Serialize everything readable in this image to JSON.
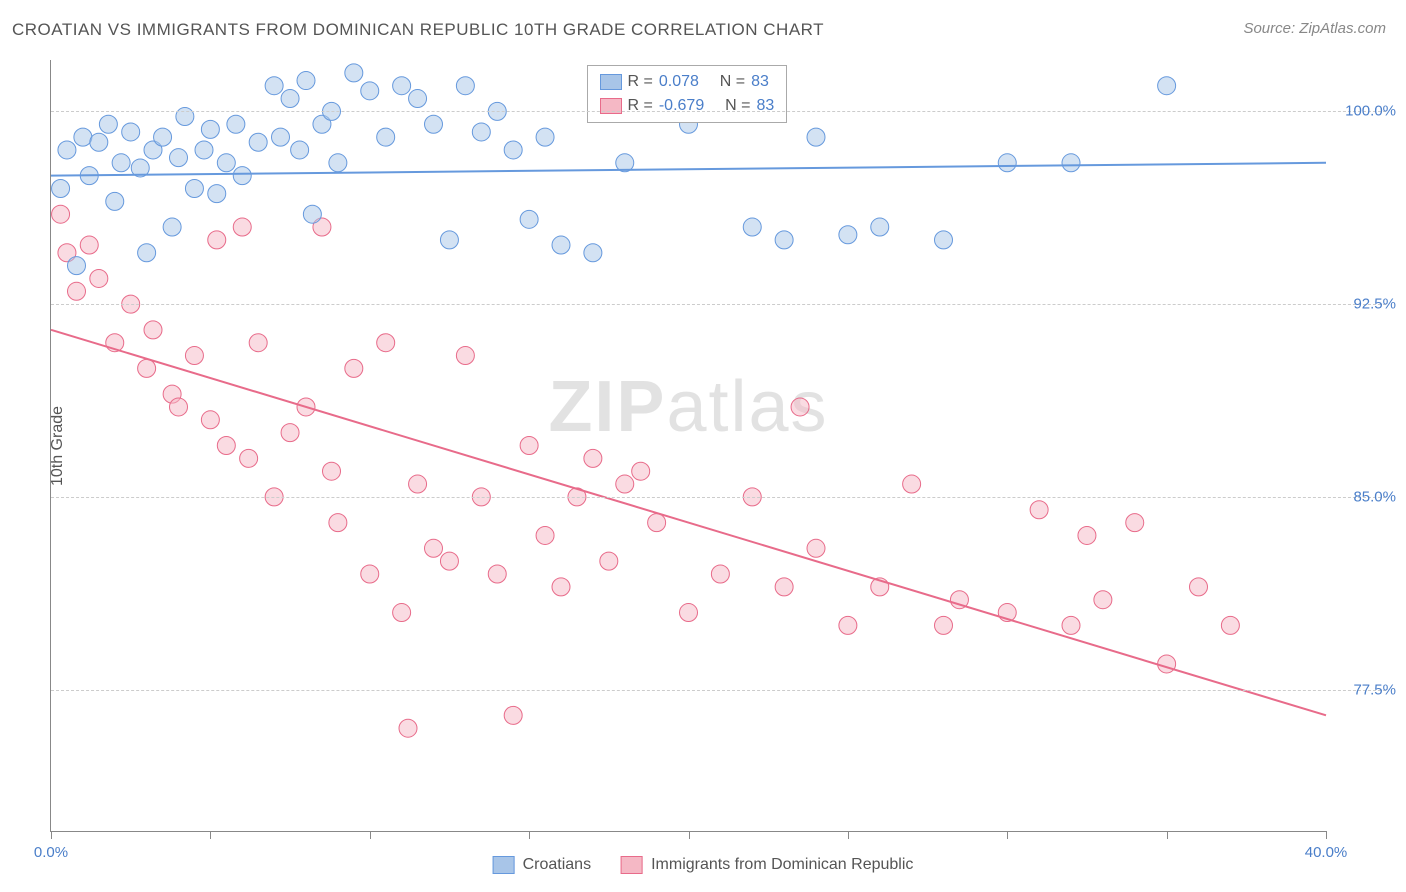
{
  "title": "CROATIAN VS IMMIGRANTS FROM DOMINICAN REPUBLIC 10TH GRADE CORRELATION CHART",
  "source": "Source: ZipAtlas.com",
  "ylabel": "10th Grade",
  "watermark": "ZIPatlas",
  "chart": {
    "type": "scatter",
    "xlim": [
      0,
      40
    ],
    "ylim": [
      72,
      102
    ],
    "yticks": [
      77.5,
      85.0,
      92.5,
      100.0
    ],
    "ytick_labels": [
      "77.5%",
      "85.0%",
      "92.5%",
      "100.0%"
    ],
    "xticks": [
      0,
      5,
      10,
      15,
      20,
      25,
      30,
      35,
      40
    ],
    "xtick_labels_shown": {
      "0": "0.0%",
      "40": "40.0%"
    },
    "background_color": "#ffffff",
    "grid_color": "#cccccc",
    "axis_color": "#888888",
    "label_color": "#4a7ec9",
    "marker_radius": 9,
    "marker_opacity": 0.5,
    "line_width": 2
  },
  "series": {
    "croatians": {
      "label": "Croatians",
      "color": "#6699dd",
      "fill": "#a8c5e8",
      "r_value": "0.078",
      "n_value": "83",
      "trend": {
        "x1": 0,
        "y1": 97.5,
        "x2": 40,
        "y2": 98.0
      },
      "points": [
        [
          0.3,
          97.0
        ],
        [
          0.5,
          98.5
        ],
        [
          0.8,
          94.0
        ],
        [
          1.0,
          99.0
        ],
        [
          1.2,
          97.5
        ],
        [
          1.5,
          98.8
        ],
        [
          1.8,
          99.5
        ],
        [
          2.0,
          96.5
        ],
        [
          2.2,
          98.0
        ],
        [
          2.5,
          99.2
        ],
        [
          2.8,
          97.8
        ],
        [
          3.0,
          94.5
        ],
        [
          3.2,
          98.5
        ],
        [
          3.5,
          99.0
        ],
        [
          3.8,
          95.5
        ],
        [
          4.0,
          98.2
        ],
        [
          4.2,
          99.8
        ],
        [
          4.5,
          97.0
        ],
        [
          4.8,
          98.5
        ],
        [
          5.0,
          99.3
        ],
        [
          5.2,
          96.8
        ],
        [
          5.5,
          98.0
        ],
        [
          5.8,
          99.5
        ],
        [
          6.0,
          97.5
        ],
        [
          6.5,
          98.8
        ],
        [
          7.0,
          101.0
        ],
        [
          7.2,
          99.0
        ],
        [
          7.5,
          100.5
        ],
        [
          7.8,
          98.5
        ],
        [
          8.0,
          101.2
        ],
        [
          8.2,
          96.0
        ],
        [
          8.5,
          99.5
        ],
        [
          8.8,
          100.0
        ],
        [
          9.0,
          98.0
        ],
        [
          9.5,
          101.5
        ],
        [
          10.0,
          100.8
        ],
        [
          10.5,
          99.0
        ],
        [
          11.0,
          101.0
        ],
        [
          11.5,
          100.5
        ],
        [
          12.0,
          99.5
        ],
        [
          12.5,
          95.0
        ],
        [
          13.0,
          101.0
        ],
        [
          13.5,
          99.2
        ],
        [
          14.0,
          100.0
        ],
        [
          14.5,
          98.5
        ],
        [
          15.0,
          95.8
        ],
        [
          15.5,
          99.0
        ],
        [
          16.0,
          94.8
        ],
        [
          17.0,
          94.5
        ],
        [
          18.0,
          98.0
        ],
        [
          19.0,
          101.0
        ],
        [
          20.0,
          99.5
        ],
        [
          21.0,
          101.0
        ],
        [
          22.0,
          95.5
        ],
        [
          23.0,
          95.0
        ],
        [
          24.0,
          99.0
        ],
        [
          25.0,
          95.2
        ],
        [
          26.0,
          95.5
        ],
        [
          28.0,
          95.0
        ],
        [
          30.0,
          98.0
        ],
        [
          32.0,
          98.0
        ],
        [
          35.0,
          101.0
        ]
      ]
    },
    "dominican": {
      "label": "Immigrants from Dominican Republic",
      "color": "#e86b8a",
      "fill": "#f5b8c5",
      "r_value": "-0.679",
      "n_value": "83",
      "trend": {
        "x1": 0,
        "y1": 91.5,
        "x2": 40,
        "y2": 76.5
      },
      "points": [
        [
          0.3,
          96.0
        ],
        [
          0.5,
          94.5
        ],
        [
          0.8,
          93.0
        ],
        [
          1.2,
          94.8
        ],
        [
          1.5,
          93.5
        ],
        [
          2.0,
          91.0
        ],
        [
          2.5,
          92.5
        ],
        [
          3.0,
          90.0
        ],
        [
          3.2,
          91.5
        ],
        [
          3.8,
          89.0
        ],
        [
          4.0,
          88.5
        ],
        [
          4.5,
          90.5
        ],
        [
          5.0,
          88.0
        ],
        [
          5.2,
          95.0
        ],
        [
          5.5,
          87.0
        ],
        [
          6.0,
          95.5
        ],
        [
          6.2,
          86.5
        ],
        [
          6.5,
          91.0
        ],
        [
          7.0,
          85.0
        ],
        [
          7.5,
          87.5
        ],
        [
          8.0,
          88.5
        ],
        [
          8.5,
          95.5
        ],
        [
          8.8,
          86.0
        ],
        [
          9.0,
          84.0
        ],
        [
          9.5,
          90.0
        ],
        [
          10.0,
          82.0
        ],
        [
          10.5,
          91.0
        ],
        [
          11.0,
          80.5
        ],
        [
          11.2,
          76.0
        ],
        [
          11.5,
          85.5
        ],
        [
          12.0,
          83.0
        ],
        [
          12.5,
          82.5
        ],
        [
          13.0,
          90.5
        ],
        [
          13.5,
          85.0
        ],
        [
          14.0,
          82.0
        ],
        [
          14.5,
          76.5
        ],
        [
          15.0,
          87.0
        ],
        [
          15.5,
          83.5
        ],
        [
          16.0,
          81.5
        ],
        [
          16.5,
          85.0
        ],
        [
          17.0,
          86.5
        ],
        [
          17.5,
          82.5
        ],
        [
          18.0,
          85.5
        ],
        [
          18.5,
          86.0
        ],
        [
          19.0,
          84.0
        ],
        [
          20.0,
          80.5
        ],
        [
          21.0,
          82.0
        ],
        [
          22.0,
          85.0
        ],
        [
          23.0,
          81.5
        ],
        [
          23.5,
          88.5
        ],
        [
          24.0,
          83.0
        ],
        [
          25.0,
          80.0
        ],
        [
          26.0,
          81.5
        ],
        [
          27.0,
          85.5
        ],
        [
          28.0,
          80.0
        ],
        [
          28.5,
          81.0
        ],
        [
          30.0,
          80.5
        ],
        [
          31.0,
          84.5
        ],
        [
          32.0,
          80.0
        ],
        [
          32.5,
          83.5
        ],
        [
          33.0,
          81.0
        ],
        [
          34.0,
          84.0
        ],
        [
          35.0,
          78.5
        ],
        [
          36.0,
          81.5
        ],
        [
          37.0,
          80.0
        ]
      ]
    }
  },
  "legend_box": {
    "r_label": "R =",
    "n_label": "N ="
  }
}
